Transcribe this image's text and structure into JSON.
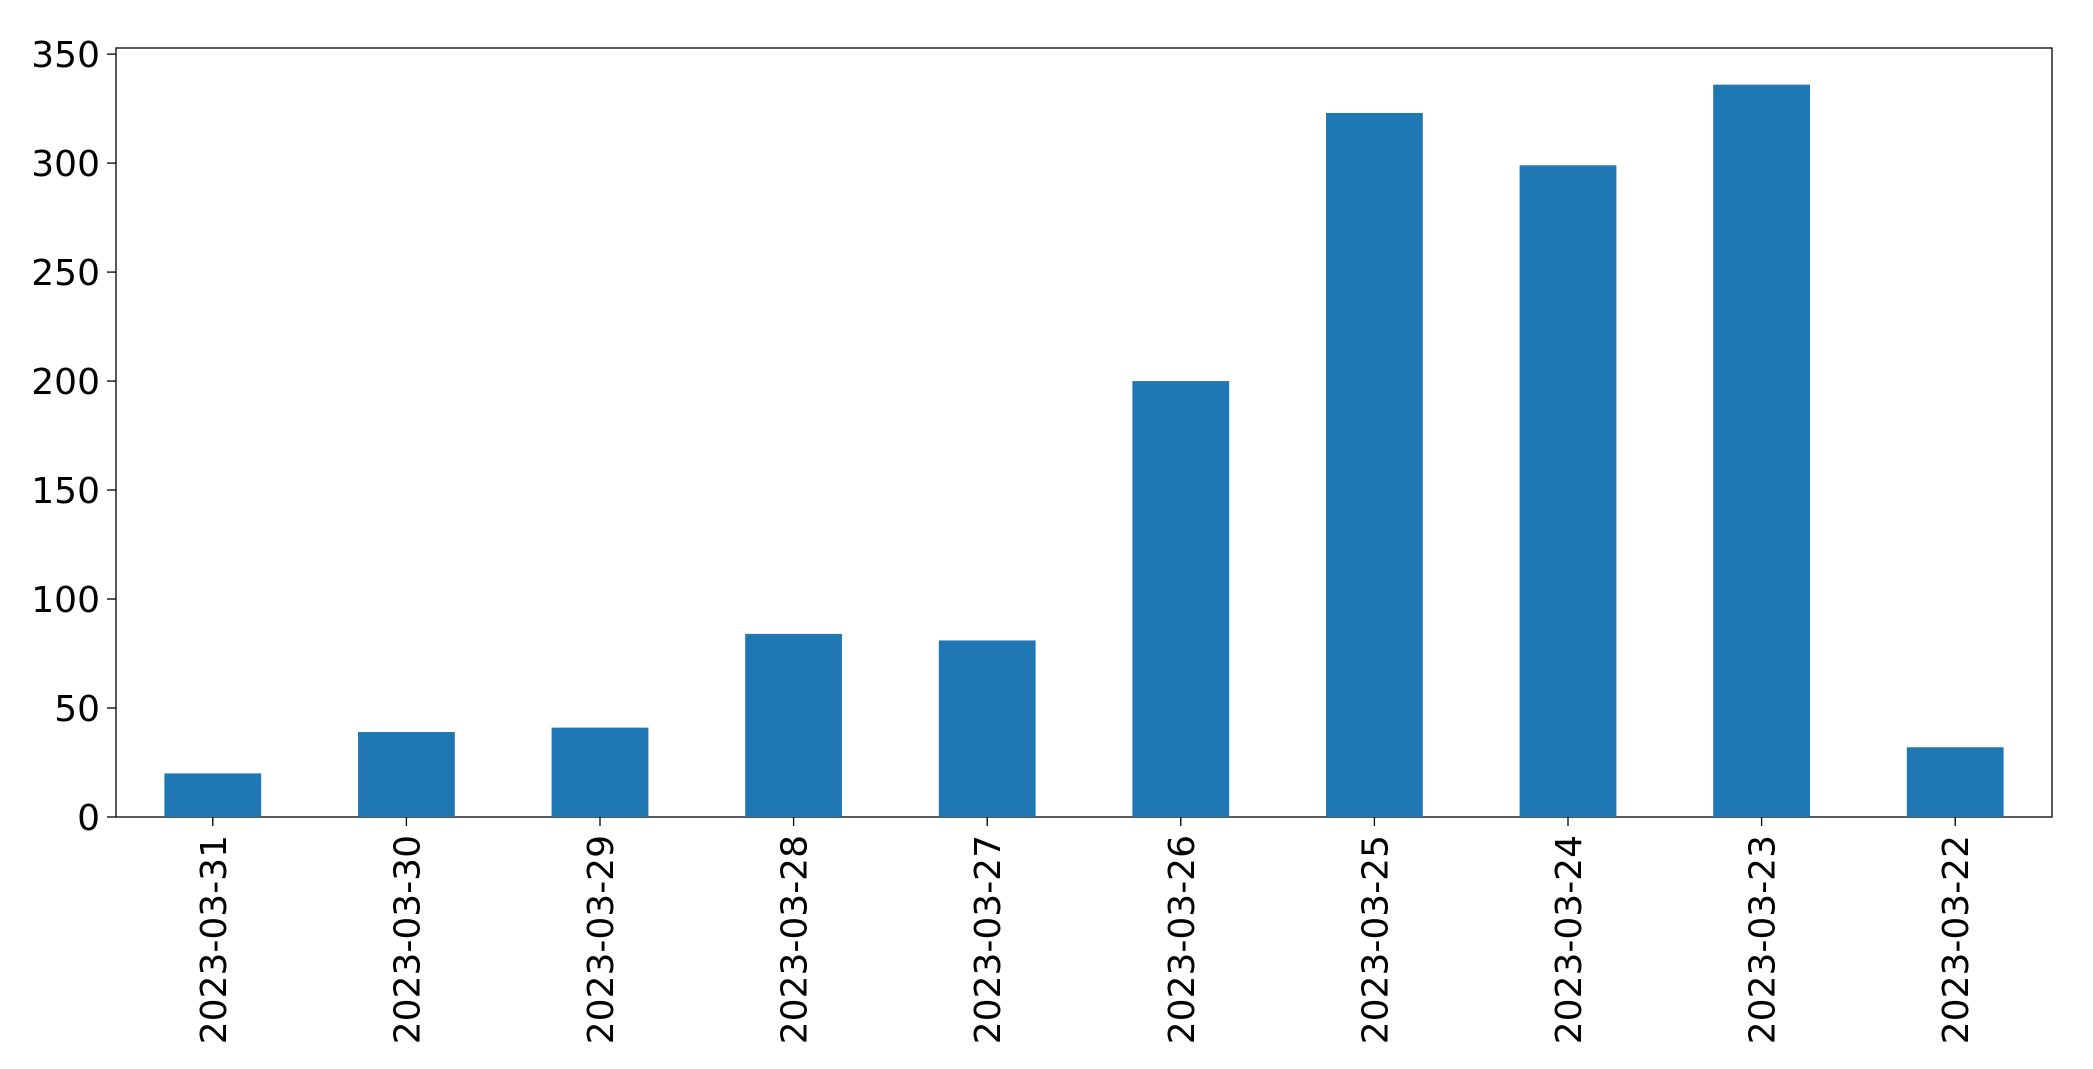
{
  "chart_data": {
    "type": "bar",
    "categories": [
      "2023-03-31",
      "2023-03-30",
      "2023-03-29",
      "2023-03-28",
      "2023-03-27",
      "2023-03-26",
      "2023-03-25",
      "2023-03-24",
      "2023-03-23",
      "2023-03-22"
    ],
    "values": [
      20,
      39,
      41,
      84,
      81,
      200,
      323,
      299,
      336,
      32
    ],
    "color": "#1f77b4",
    "ylim": [
      0,
      352.8
    ],
    "yticks": [
      0,
      50,
      100,
      150,
      200,
      250,
      300,
      350
    ],
    "grid": false
  }
}
